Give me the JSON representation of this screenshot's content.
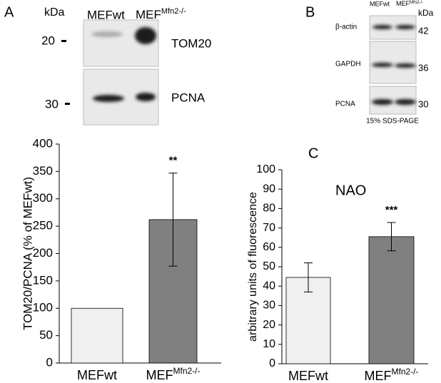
{
  "blot_a": {
    "letter": "A",
    "kda": "kDa",
    "lanes": [
      "MEFwt",
      "MEF"
    ],
    "lane_superscripts": [
      null,
      "Mfn2-/-"
    ],
    "rows": [
      {
        "marker": "20",
        "protein": "TOM20"
      },
      {
        "marker": "30",
        "protein": "PCNA"
      }
    ]
  },
  "blot_b": {
    "letter": "B",
    "kda": "kDa",
    "lanes": [
      "MEFwt",
      "MEF"
    ],
    "lane_superscripts": [
      null,
      "Mfn2-/-"
    ],
    "rows": [
      {
        "protein": "β-actin",
        "marker": "42"
      },
      {
        "protein": "GAPDH",
        "marker": "36"
      },
      {
        "protein": "PCNA",
        "marker": "30"
      }
    ],
    "caption": "15% SDS-PAGE"
  },
  "chart_data": [
    {
      "type": "bar",
      "ylabel": "TOM20/PCNA (% of MEFwt)",
      "categories": [
        "MEFwt",
        "MEF"
      ],
      "category_superscripts": [
        null,
        "Mfn2-/-"
      ],
      "values": [
        100,
        262
      ],
      "errors": [
        null,
        85
      ],
      "colors": [
        "#f0f0f0",
        "#808080"
      ],
      "annotations": [
        null,
        "**"
      ],
      "ylim": [
        0,
        400
      ],
      "yticks": [
        0,
        50,
        100,
        150,
        200,
        250,
        300,
        350,
        400
      ]
    },
    {
      "type": "bar",
      "panel": "C",
      "label": "NAO",
      "ylabel": "arbitrary units of fluorescence",
      "categories": [
        "MEFwt",
        "MEF"
      ],
      "category_superscripts": [
        null,
        "Mfn2-/-"
      ],
      "values": [
        44.5,
        65.5
      ],
      "errors": [
        7.5,
        7.3
      ],
      "colors": [
        "#f0f0f0",
        "#808080"
      ],
      "annotations": [
        null,
        "***"
      ],
      "ylim": [
        0,
        100
      ],
      "yticks": [
        0,
        10,
        20,
        30,
        40,
        50,
        60,
        70,
        80,
        90,
        100
      ]
    }
  ]
}
